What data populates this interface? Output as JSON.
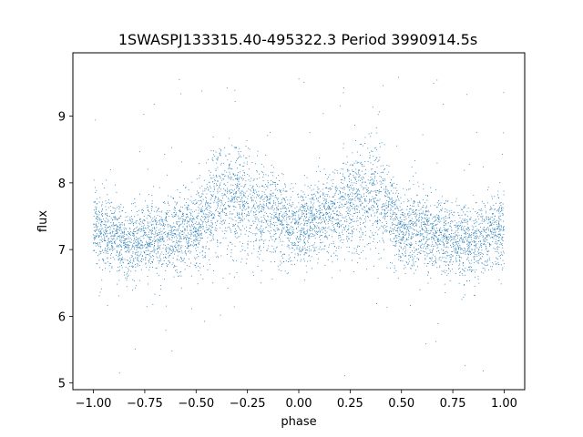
{
  "chart_data": {
    "type": "scatter",
    "title": "1SWASPJ133315.40-495322.3 Period 3990914.5s",
    "xlabel": "phase",
    "ylabel": "flux",
    "xlim": [
      -1.1,
      1.1
    ],
    "ylim": [
      4.9,
      9.95
    ],
    "grid": false,
    "legend": "none",
    "xticks": [
      -1.0,
      -0.75,
      -0.5,
      -0.25,
      0.0,
      0.25,
      0.5,
      0.75,
      1.0
    ],
    "xtick_labels": [
      "−1.00",
      "−0.75",
      "−0.50",
      "−0.25",
      "0.00",
      "0.25",
      "0.50",
      "0.75",
      "1.00"
    ],
    "yticks": [
      5,
      6,
      7,
      8,
      9
    ],
    "ytick_labels": [
      "5",
      "6",
      "7",
      "8",
      "9"
    ],
    "point_color": "#1f77b4",
    "series": [
      {
        "name": "",
        "profile_x": [
          0.0,
          0.05,
          0.1,
          0.15,
          0.2,
          0.25,
          0.3,
          0.35,
          0.4,
          0.45,
          0.5,
          0.55,
          0.6,
          0.65,
          0.7,
          0.75,
          0.8,
          0.85,
          0.9,
          0.95,
          1.0
        ],
        "profile_median_flux": [
          7.3,
          7.4,
          7.5,
          7.55,
          7.6,
          7.7,
          7.75,
          7.8,
          7.75,
          7.5,
          7.3,
          7.3,
          7.25,
          7.25,
          7.2,
          7.15,
          7.1,
          7.1,
          7.2,
          7.3,
          7.3
        ],
        "profile_spread": [
          0.5,
          0.5,
          0.55,
          0.6,
          0.65,
          0.7,
          0.75,
          0.8,
          0.75,
          0.6,
          0.5,
          0.55,
          0.5,
          0.5,
          0.5,
          0.5,
          0.5,
          0.5,
          0.5,
          0.5,
          0.5
        ],
        "flux_min": 5.1,
        "flux_max": 9.7
      }
    ]
  }
}
